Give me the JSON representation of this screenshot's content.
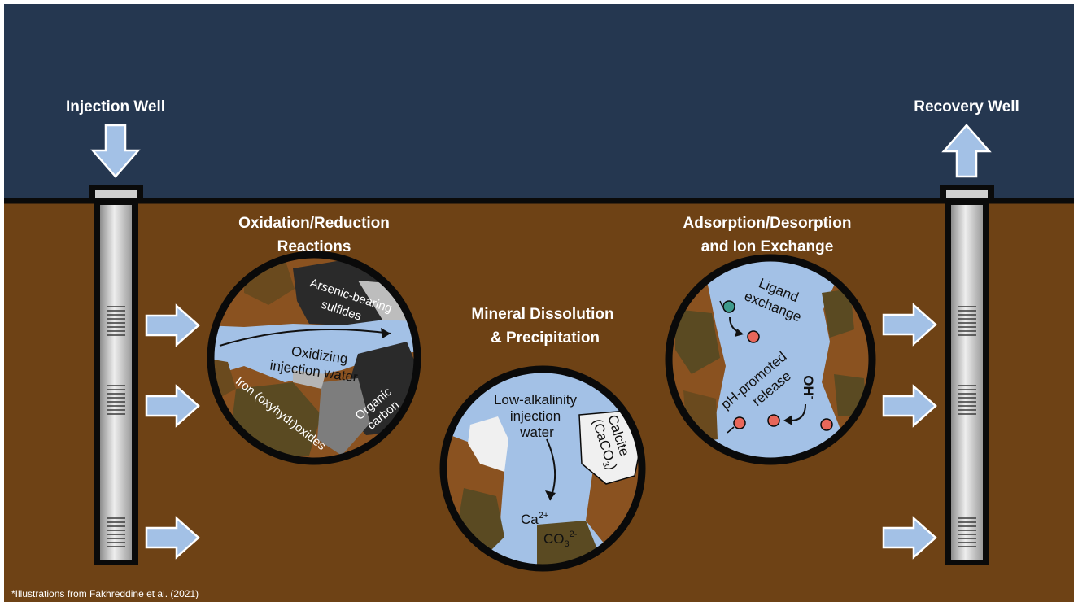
{
  "wells": {
    "injection": {
      "label": "Injection Well"
    },
    "recovery": {
      "label": "Recovery Well"
    }
  },
  "processes": {
    "redox": {
      "title_line1": "Oxidation/Reduction",
      "title_line2": "Reactions",
      "labels": {
        "arsenic_line1": "Arsenic-bearing",
        "arsenic_line2": "sulfides",
        "oxidizing_line1": "Oxidizing",
        "oxidizing_line2": "injection water",
        "iron": "Iron (oxyhydr)oxides",
        "organic_line1": "Organic",
        "organic_line2": "carbon"
      }
    },
    "dissolution": {
      "title_line1": "Mineral Dissolution",
      "title_line2": "& Precipitation",
      "labels": {
        "water_line1": "Low-alkalinity",
        "water_line2": "injection",
        "water_line3": "water",
        "calcite_line1": "Calcite",
        "calcite_line2": "(CaCO",
        "calcite_sub": "3",
        "calcite_close": ")",
        "ca": "Ca",
        "ca_sup": "2+",
        "co3": "CO",
        "co3_sub": "3",
        "co3_sup": "2-"
      }
    },
    "adsorption": {
      "title_line1": "Adsorption/Desorption",
      "title_line2": "and Ion Exchange",
      "labels": {
        "ligand_line1": "Ligand",
        "ligand_line2": "exchange",
        "ph_line1": "pH-promoted",
        "ph_line2": "release",
        "oh": "OH",
        "oh_sup": "-"
      }
    }
  },
  "caption": "*Illustrations from Fakhreddine et al. (2021)",
  "colors": {
    "sky": "#253750",
    "ground": "#6e4215",
    "water": "#a3c1e6",
    "arrow": "#a3c1e6",
    "well": "#cfcfcf",
    "outline": "#0a0a0a",
    "sediment": "#8a5220",
    "dark_sediment": "#5a4a22",
    "sulfide": "#2a2a2a",
    "calcite": "#f0f0f0",
    "ion_red": "#e8675a",
    "ion_teal": "#3e9a8c"
  }
}
